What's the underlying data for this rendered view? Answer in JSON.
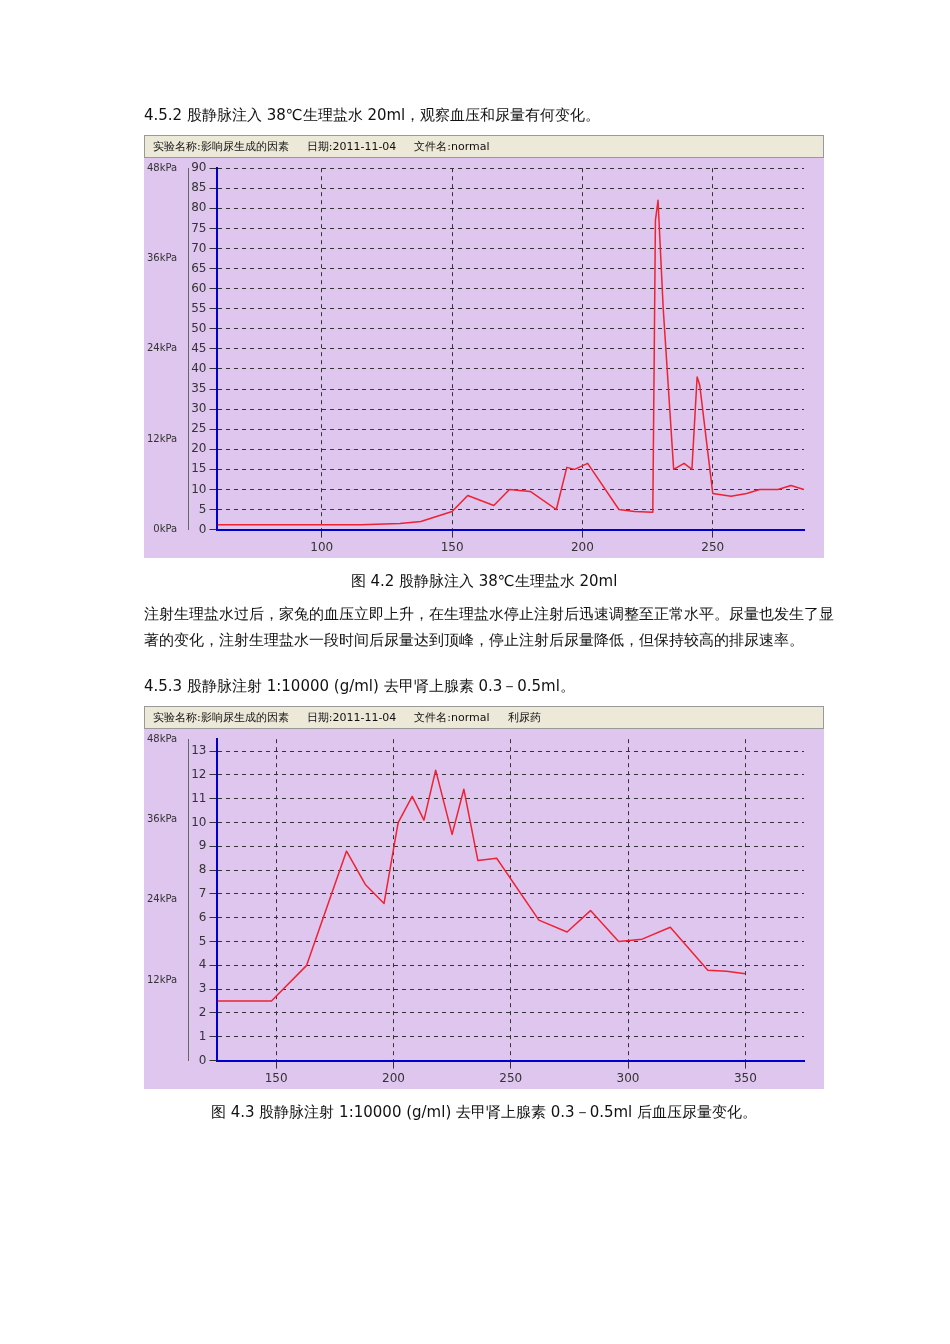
{
  "chart_data": [
    {
      "type": "line",
      "title": "4.5.2 股静脉注入 38℃生理盐水 20ml，观察血压和尿量有何变化。",
      "subtitle": "图 4.2 股静脉注入 38℃生理盐水 20ml",
      "annotations": [
        "实验名称:影响尿生成的因素",
        "日期:2011-11-04",
        "文件名:normal",
        "注射生理盐水过后，家兔的血压立即上升，在生理盐水停止注射后迅速调整至正常水平。尿量也发生了显著的变化，注射生理盐水一段时间后尿量达到顶峰，停止注射后尿量降低，但保持较高的排尿速率。"
      ],
      "x": [
        60,
        115,
        130,
        138,
        150,
        156,
        166,
        172,
        180,
        190,
        194,
        197,
        202,
        214,
        220,
        227,
        228,
        229,
        231,
        235,
        239,
        242,
        244,
        245,
        250,
        257,
        263,
        268,
        275,
        280,
        285
      ],
      "values": [
        1.2,
        1.2,
        1.5,
        2,
        4.5,
        8.5,
        6,
        10,
        9.5,
        5,
        15.5,
        15,
        16.5,
        5,
        4.5,
        4.3,
        77,
        82,
        55,
        15,
        16.5,
        15,
        38,
        36,
        9,
        8.3,
        9,
        10,
        10,
        11,
        10
      ],
      "color": "#ee2233",
      "xlim": [
        60,
        285
      ],
      "xticks": [
        100,
        150,
        200,
        250
      ],
      "ylim": [
        0,
        90
      ],
      "yticks": [
        0,
        5,
        10,
        15,
        20,
        25,
        30,
        35,
        40,
        45,
        50,
        55,
        60,
        65,
        70,
        75,
        80,
        85,
        90
      ],
      "y2lim": [
        0,
        48
      ],
      "y2ticks": [
        {
          "value": 0,
          "label": "0kPa"
        },
        {
          "value": 12,
          "label": "12kPa"
        },
        {
          "value": 24,
          "label": "24kPa"
        },
        {
          "value": 36,
          "label": "36kPa"
        },
        {
          "value": 48,
          "label": "48kPa"
        }
      ],
      "grid": true,
      "legend": false,
      "marker": "none",
      "line_style": "solid"
    },
    {
      "type": "line",
      "title": "4.5.3 股静脉注射 1:10000 (g/ml)  去甲肾上腺素 0.3－0.5ml。",
      "subtitle": "图 4.3 股静脉注射 1:10000 (g/ml)  去甲肾上腺素 0.3－0.5ml 后血压尿量变化。",
      "annotations": [
        "实验名称:影响尿生成的因素",
        "日期:2011-11-04",
        "文件名:normal",
        "利尿药"
      ],
      "x": [
        125,
        148,
        163,
        180,
        188,
        196,
        202,
        208,
        213,
        218,
        225,
        230,
        236,
        244,
        262,
        274,
        284,
        296,
        306,
        318,
        334,
        342,
        350
      ],
      "values": [
        2.5,
        2.5,
        4,
        8.8,
        7.4,
        6.6,
        10,
        11.1,
        10.1,
        12.2,
        9.5,
        11.4,
        8.4,
        8.5,
        5.9,
        5.4,
        6.3,
        5,
        5.1,
        5.6,
        3.8,
        3.75,
        3.65
      ],
      "color": "#ee2233",
      "xlim": [
        125,
        375
      ],
      "xticks": [
        150,
        200,
        250,
        300,
        350
      ],
      "ylim": [
        0,
        13.5
      ],
      "yticks": [
        0,
        1,
        2,
        3,
        4,
        5,
        6,
        7,
        8,
        9,
        10,
        11,
        12,
        13
      ],
      "y2lim": [
        0,
        48
      ],
      "y2ticks": [
        {
          "value": 12,
          "label": "12kPa"
        },
        {
          "value": 24,
          "label": "24kPa"
        },
        {
          "value": 36,
          "label": "36kPa"
        },
        {
          "value": 48,
          "label": "48kPa"
        }
      ],
      "grid": true,
      "legend": false,
      "marker": "none",
      "line_style": "solid"
    }
  ]
}
